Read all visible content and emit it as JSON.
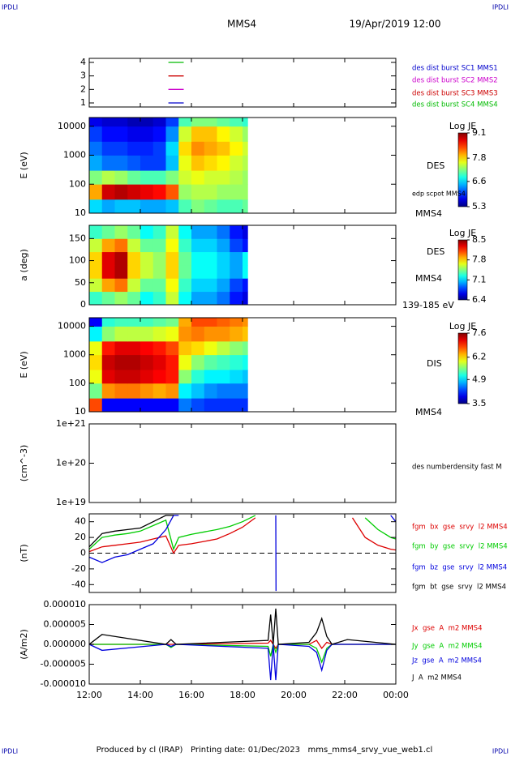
{
  "header": {
    "left": "IPDLI",
    "right": "IPDLI",
    "title": "MMS4",
    "date": "19/Apr/2019 12:00"
  },
  "footer": {
    "text": "Produced by cl (IRAP)   Printing date: 01/Dec/2023   mms_mms4_srvy_vue_web1.cl",
    "left": "IPDLI",
    "right": "IPDLI"
  },
  "chart_data": [
    {
      "type": "line",
      "ylim": [
        0.7,
        4.3
      ],
      "yticks": [
        1,
        2,
        3,
        4
      ],
      "series": [
        {
          "name": "des dist burst SC1 MMS1",
          "color": "#0000cc",
          "x": [
            15.1,
            15.7
          ],
          "values": [
            1,
            1
          ]
        },
        {
          "name": "des dist burst SC2 MMS2",
          "color": "#cc00cc",
          "x": [
            15.1,
            15.7
          ],
          "values": [
            2,
            2
          ]
        },
        {
          "name": "des dist burst SC3 MMS3",
          "color": "#cc0000",
          "x": [
            15.1,
            15.7
          ],
          "values": [
            3,
            3
          ]
        },
        {
          "name": "des dist burst SC4 MMS4",
          "color": "#00bb00",
          "x": [
            15.1,
            15.7
          ],
          "values": [
            4,
            4
          ]
        }
      ]
    },
    {
      "type": "heatmap",
      "ylabel": "E (eV)",
      "log_y": true,
      "ylim": [
        10,
        20000
      ],
      "yticks": [
        10,
        100,
        1000,
        10000
      ],
      "annotations": [
        "DES",
        "edp scpot MMS4",
        "MMS4"
      ],
      "xbins": [
        12,
        12.5,
        13,
        13.5,
        14,
        14.5,
        15,
        15.5,
        16,
        16.5,
        17,
        17.5,
        18,
        18.2
      ],
      "ybins": [
        10,
        30,
        100,
        300,
        1000,
        3000,
        10000,
        20000
      ],
      "z": [
        [
          6.6,
          6.4,
          6.5,
          6.5,
          6.4,
          6.4,
          6.5,
          7.0,
          7.2,
          7.1,
          7.0,
          7.0,
          7.1
        ],
        [
          8.0,
          8.8,
          8.9,
          8.8,
          8.7,
          8.6,
          8.3,
          7.3,
          7.4,
          7.4,
          7.3,
          7.3,
          7.3
        ],
        [
          7.2,
          7.4,
          7.3,
          7.1,
          7.0,
          7.0,
          7.2,
          7.5,
          7.6,
          7.5,
          7.5,
          7.4,
          7.3
        ],
        [
          6.4,
          6.2,
          6.2,
          6.1,
          6.0,
          6.0,
          6.5,
          7.6,
          7.9,
          7.8,
          7.7,
          7.5,
          7.4
        ],
        [
          6.2,
          6.0,
          6.0,
          5.9,
          5.9,
          6.0,
          6.6,
          7.8,
          8.1,
          8.0,
          7.9,
          7.7,
          7.5
        ],
        [
          6.0,
          5.8,
          5.8,
          5.7,
          5.7,
          5.8,
          6.3,
          7.5,
          7.9,
          7.9,
          7.7,
          7.5,
          7.3
        ],
        [
          5.7,
          5.6,
          5.6,
          5.5,
          5.5,
          5.6,
          6.0,
          7.0,
          7.2,
          7.2,
          7.1,
          7.0,
          6.9
        ]
      ],
      "clim": [
        5.3,
        9.1
      ],
      "colorbar": {
        "title": "Log JE",
        "ticks": [
          9.1,
          7.8,
          6.6,
          5.3
        ]
      }
    },
    {
      "type": "heatmap",
      "ylabel": "a (deg)",
      "ylim": [
        0,
        180
      ],
      "yticks": [
        0,
        50,
        100,
        150
      ],
      "annotations": [
        "DES",
        "MMS4",
        "139-185 eV"
      ],
      "xbins": [
        12,
        12.5,
        13,
        13.5,
        14,
        14.5,
        15,
        15.5,
        16,
        16.5,
        17,
        17.5,
        18,
        18.2
      ],
      "ybins": [
        0,
        30,
        60,
        90,
        120,
        150,
        180
      ],
      "z": [
        [
          7.3,
          7.4,
          7.5,
          7.4,
          7.2,
          7.3,
          7.6,
          7.2,
          7.0,
          7.0,
          6.9,
          6.7,
          6.6
        ],
        [
          7.6,
          7.9,
          8.0,
          7.6,
          7.4,
          7.4,
          7.7,
          7.3,
          7.1,
          7.1,
          7.0,
          6.8,
          6.7
        ],
        [
          7.8,
          8.3,
          8.4,
          7.8,
          7.6,
          7.5,
          7.8,
          7.4,
          7.2,
          7.2,
          7.1,
          7.0,
          7.2
        ],
        [
          7.8,
          8.3,
          8.4,
          7.8,
          7.6,
          7.5,
          7.8,
          7.4,
          7.2,
          7.2,
          7.1,
          7.0,
          7.2
        ],
        [
          7.6,
          7.9,
          8.0,
          7.6,
          7.4,
          7.4,
          7.7,
          7.3,
          7.1,
          7.1,
          7.0,
          6.8,
          6.7
        ],
        [
          7.3,
          7.4,
          7.5,
          7.4,
          7.2,
          7.3,
          7.6,
          7.2,
          7.0,
          7.0,
          6.9,
          6.7,
          6.6
        ]
      ],
      "clim": [
        6.4,
        8.5
      ],
      "colorbar": {
        "title": "Log JE",
        "ticks": [
          8.5,
          7.8,
          7.1,
          6.4
        ]
      }
    },
    {
      "type": "heatmap",
      "ylabel": "E (eV)",
      "log_y": true,
      "ylim": [
        10,
        20000
      ],
      "yticks": [
        10,
        100,
        1000,
        10000
      ],
      "annotations": [
        "DIS",
        "MMS4"
      ],
      "xbins": [
        12,
        12.5,
        13,
        13.5,
        14,
        14.5,
        15,
        15.5,
        16,
        16.5,
        17,
        17.5,
        18,
        18.2
      ],
      "ybins": [
        10,
        30,
        100,
        300,
        1000,
        3000,
        10000,
        20000
      ],
      "z": [
        [
          6.8,
          4.0,
          4.0,
          4.0,
          4.0,
          4.0,
          4.0,
          4.5,
          4.3,
          4.2,
          4.2,
          4.2,
          4.2
        ],
        [
          5.5,
          6.5,
          6.6,
          6.6,
          6.5,
          6.4,
          6.5,
          5.0,
          4.8,
          4.6,
          4.5,
          4.5,
          4.5
        ],
        [
          6.0,
          7.2,
          7.3,
          7.3,
          7.2,
          7.1,
          7.0,
          5.6,
          5.2,
          5.0,
          5.0,
          4.9,
          4.8
        ],
        [
          6.2,
          7.3,
          7.4,
          7.4,
          7.3,
          7.2,
          7.0,
          6.0,
          5.6,
          5.4,
          5.3,
          5.2,
          5.1
        ],
        [
          6.0,
          7.0,
          7.2,
          7.2,
          7.1,
          7.0,
          6.8,
          6.3,
          6.2,
          6.0,
          5.8,
          5.6,
          5.5
        ],
        [
          5.0,
          5.6,
          5.8,
          5.8,
          5.8,
          5.9,
          6.0,
          6.5,
          6.6,
          6.5,
          6.5,
          6.4,
          6.3
        ],
        [
          4.0,
          5.2,
          5.3,
          5.3,
          5.3,
          5.4,
          5.5,
          6.4,
          6.8,
          6.8,
          6.7,
          6.6,
          6.5
        ]
      ],
      "clim": [
        3.5,
        7.6
      ],
      "colorbar": {
        "title": "Log JE",
        "ticks": [
          7.6,
          6.2,
          4.9,
          3.5
        ]
      }
    },
    {
      "type": "line",
      "ylabel": "(cm^-3)",
      "log_y": true,
      "ylim": [
        1e+19,
        1e+21
      ],
      "yticks": [
        {
          "value": 1e+21,
          "label": "1e+21"
        },
        {
          "value": 1e+20,
          "label": "1e+20"
        },
        {
          "value": 1e+19,
          "label": "1e+19"
        }
      ],
      "series": [
        {
          "name": "des numberdensity fast M",
          "color": "#000000",
          "x": [],
          "values": []
        }
      ]
    },
    {
      "type": "line",
      "ylabel": "(nT)",
      "ylim": [
        -50,
        50
      ],
      "yticks": [
        40,
        20,
        0,
        -20,
        -40
      ],
      "zero_line": true,
      "x": [
        12.0,
        12.5,
        13.0,
        13.5,
        14.0,
        14.5,
        15.0,
        15.3,
        15.5,
        16.0,
        16.5,
        17.0,
        17.5,
        18.0,
        18.5,
        19.3,
        19.31,
        22.3,
        22.8,
        23.3,
        23.8,
        24.0
      ],
      "series": [
        {
          "name": "fgm  bx  gse  srvy  l2 MMS4",
          "color": "#dd0000",
          "values": [
            2,
            8,
            10,
            12,
            14,
            18,
            22,
            0,
            10,
            12,
            15,
            18,
            25,
            33,
            45,
            null,
            null,
            45,
            20,
            10,
            5,
            4
          ]
        },
        {
          "name": "fgm  by  gse  srvy  l2 MMS4",
          "color": "#00cc00",
          "values": [
            5,
            20,
            23,
            25,
            28,
            35,
            42,
            5,
            20,
            24,
            27,
            30,
            34,
            40,
            48,
            null,
            null,
            null,
            45,
            30,
            20,
            18
          ]
        },
        {
          "name": "fgm  bz  gse  srvy  l2 MMS4",
          "color": "#0000dd",
          "values": [
            -5,
            -12,
            -5,
            -2,
            5,
            12,
            30,
            48,
            48,
            null,
            null,
            null,
            null,
            null,
            null,
            48,
            -48,
            null,
            null,
            null,
            48,
            40
          ]
        },
        {
          "name": "fgm  bt  gse  srvy  l2 MMS4",
          "color": "#000000",
          "values": [
            8,
            25,
            28,
            30,
            32,
            40,
            48,
            48,
            null,
            null,
            null,
            null,
            null,
            null,
            null,
            null,
            null,
            null,
            null,
            null,
            null,
            null
          ]
        }
      ]
    },
    {
      "type": "line",
      "ylabel": "(A/m2)",
      "ylim": [
        -1e-05,
        1e-05
      ],
      "yticks": [
        {
          "value": 1e-05,
          "label": "0.000010"
        },
        {
          "value": 5e-06,
          "label": "0.000005"
        },
        {
          "value": 0,
          "label": "0.000000"
        },
        {
          "value": -5e-06,
          "label": "-0.000005"
        },
        {
          "value": -1e-05,
          "label": "-0.000010"
        }
      ],
      "x": [
        12.0,
        12.5,
        15.0,
        15.2,
        15.4,
        19.0,
        19.1,
        19.2,
        19.3,
        19.4,
        20.6,
        20.9,
        21.1,
        21.3,
        21.5,
        22.1,
        24.0
      ],
      "series": [
        {
          "name": "Jx  gse  A  m2 MMS4",
          "color": "#dd0000",
          "values": [
            0,
            0,
            0,
            0,
            0,
            3e-07,
            1e-06,
            0,
            -1e-06,
            0,
            0,
            1e-06,
            -1e-06,
            5e-07,
            0,
            0,
            0
          ]
        },
        {
          "name": "Jy  gse  A  m2 MMS4",
          "color": "#00cc00",
          "values": [
            0,
            0,
            0,
            -8e-07,
            0,
            -5e-07,
            -3e-06,
            0,
            -2e-06,
            0,
            0,
            -1e-06,
            -4.5e-06,
            -1e-06,
            0,
            0,
            0
          ]
        },
        {
          "name": "Jz  gse  A  m2 MMS4",
          "color": "#0000dd",
          "values": [
            0,
            -1.5e-06,
            0,
            -5e-07,
            0,
            -1e-06,
            -9e-06,
            0,
            -9e-06,
            0,
            -5e-07,
            -2e-06,
            -6.5e-06,
            -1.5e-06,
            0,
            0,
            0
          ]
        },
        {
          "name": "J  A  m2 MMS4",
          "color": "#000000",
          "values": [
            0,
            2.5e-06,
            0,
            1.2e-06,
            0,
            1e-06,
            7.5e-06,
            0,
            9e-06,
            0,
            5e-07,
            3e-06,
            6.5e-06,
            2e-06,
            0,
            1.2e-06,
            0
          ]
        }
      ],
      "xlim": [
        12,
        24
      ],
      "xticks": [
        {
          "value": 12,
          "label": "12:00"
        },
        {
          "value": 14,
          "label": "14:00"
        },
        {
          "value": 16,
          "label": "16:00"
        },
        {
          "value": 18,
          "label": "18:00"
        },
        {
          "value": 20,
          "label": "20:00"
        },
        {
          "value": 22,
          "label": "22:00"
        },
        {
          "value": 24,
          "label": "00:00"
        }
      ]
    }
  ]
}
